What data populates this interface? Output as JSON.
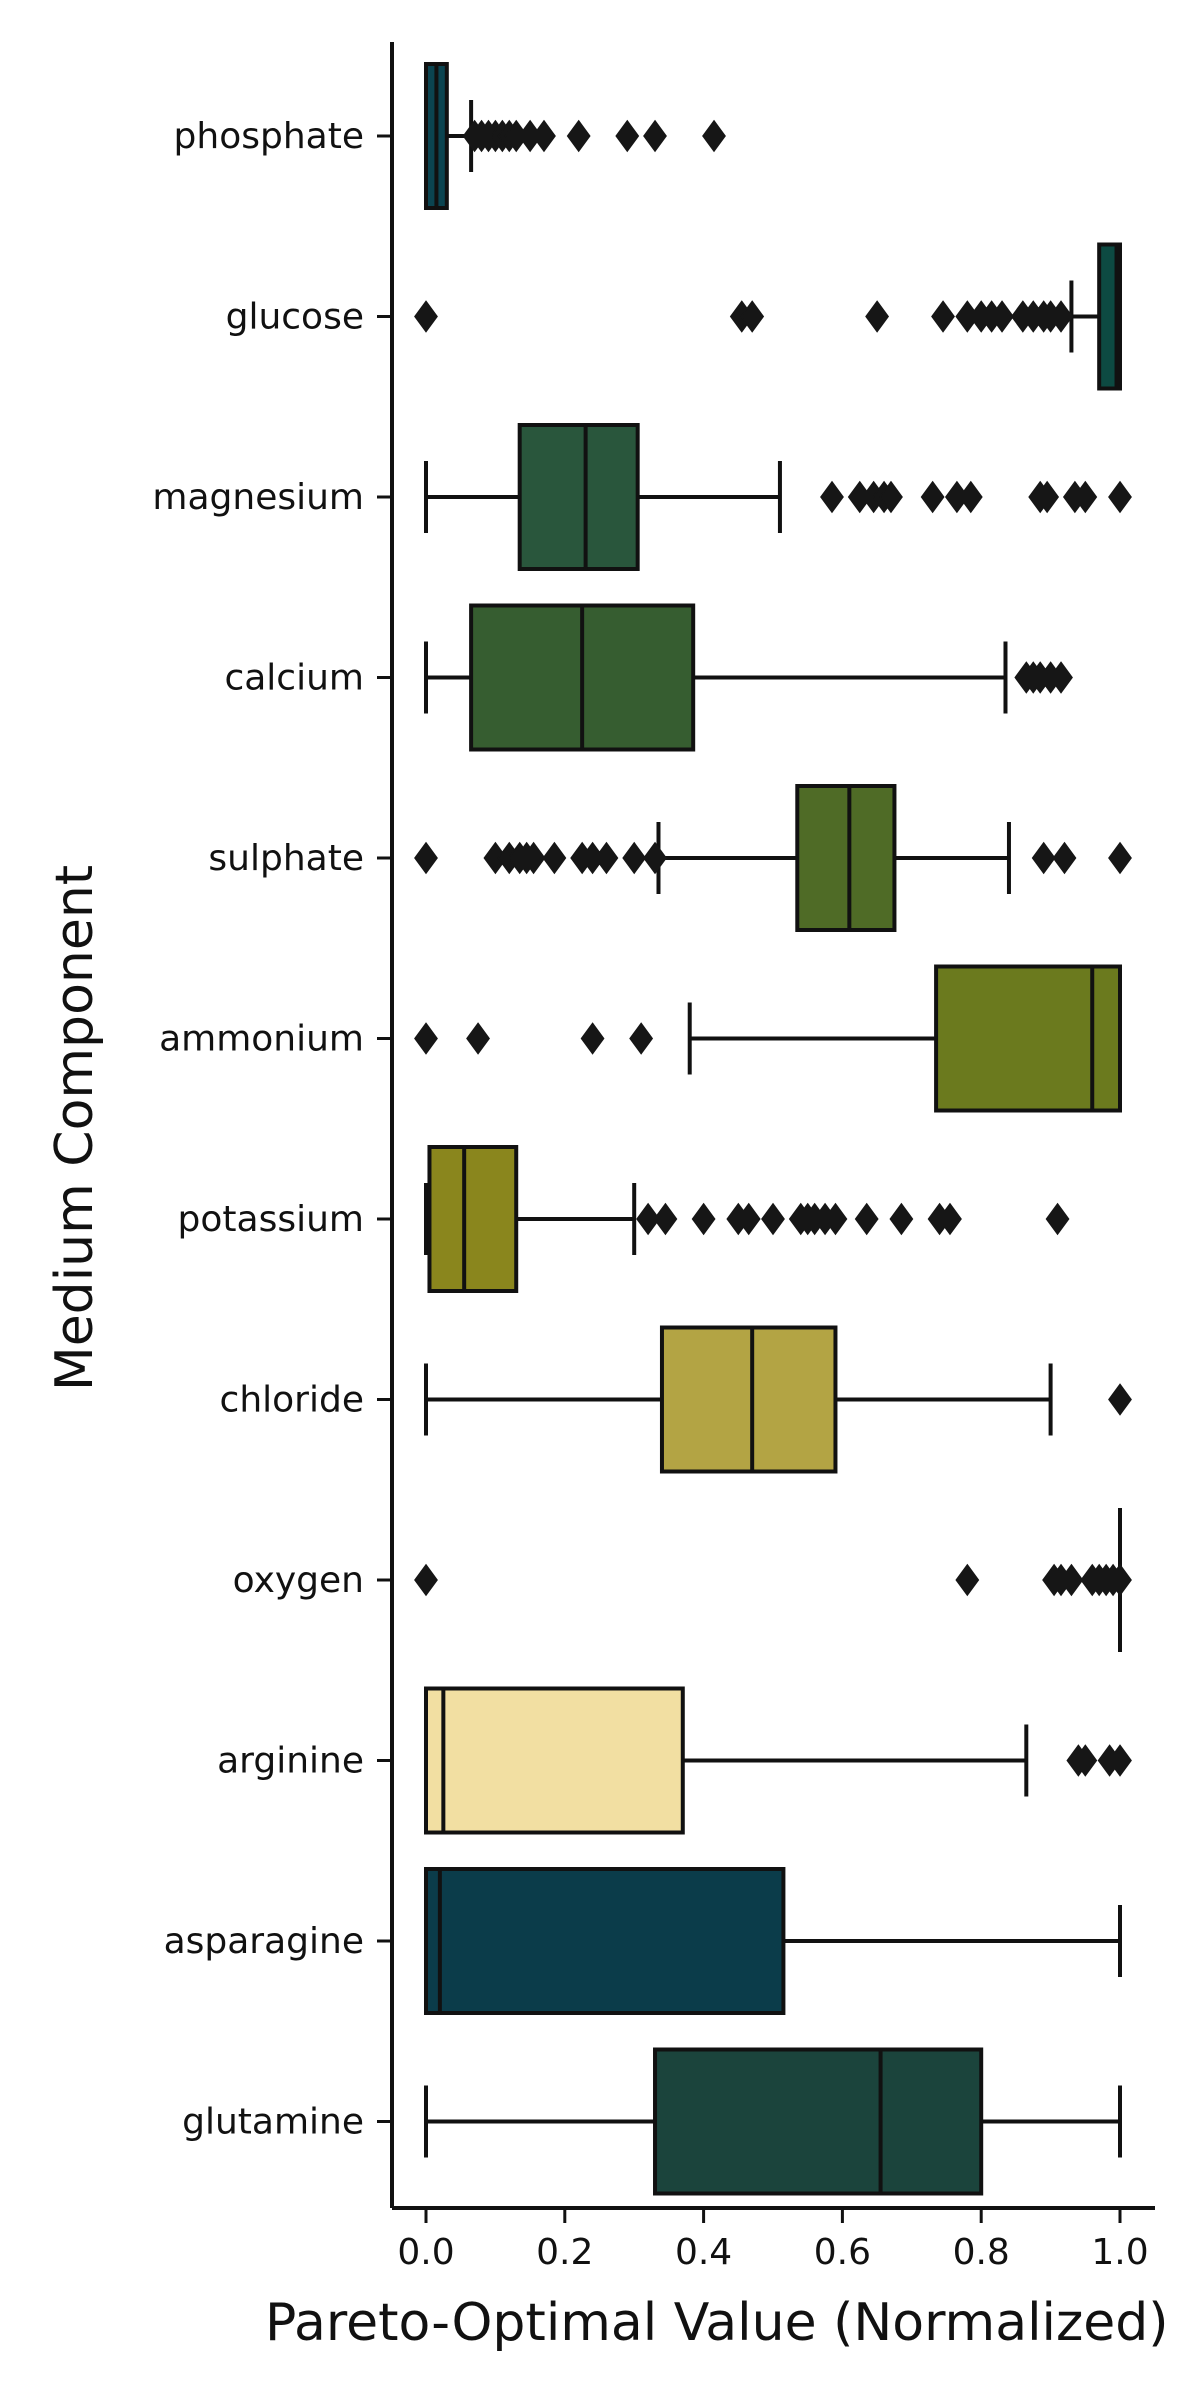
{
  "chart_data": {
    "type": "boxplot",
    "orientation": "horizontal",
    "xlabel": "Pareto-Optimal Value (Normalized)",
    "ylabel": "Medium Component",
    "xlim": [
      -0.05,
      1.05
    ],
    "x_ticks": [
      0.0,
      0.2,
      0.4,
      0.6,
      0.8,
      1.0
    ],
    "x_tick_labels": [
      "0.0",
      "0.2",
      "0.4",
      "0.6",
      "0.8",
      "1.0"
    ],
    "grid": false,
    "categories": [
      "phosphate",
      "glucose",
      "magnesium",
      "calcium",
      "sulphate",
      "ammonium",
      "potassium",
      "chloride",
      "oxygen",
      "arginine",
      "asparagine",
      "glutamine"
    ],
    "series": [
      {
        "category": "phosphate",
        "color": "#0b4450",
        "whisker_low": 0.0,
        "q1": 0.0,
        "median": 0.015,
        "q3": 0.03,
        "whisker_high": 0.065,
        "outliers": [
          0.07,
          0.08,
          0.09,
          0.1,
          0.11,
          0.12,
          0.13,
          0.15,
          0.17,
          0.22,
          0.29,
          0.33,
          0.415
        ]
      },
      {
        "category": "glucose",
        "color": "#0d4a42",
        "whisker_low": 0.93,
        "q1": 0.97,
        "median": 0.995,
        "q3": 1.0,
        "whisker_high": 1.0,
        "outliers": [
          0.0,
          0.455,
          0.47,
          0.65,
          0.745,
          0.78,
          0.8,
          0.815,
          0.83,
          0.86,
          0.875,
          0.89,
          0.9,
          0.915
        ]
      },
      {
        "category": "magnesium",
        "color": "#29563c",
        "whisker_low": 0.0,
        "q1": 0.135,
        "median": 0.23,
        "q3": 0.305,
        "whisker_high": 0.51,
        "outliers": [
          0.585,
          0.625,
          0.645,
          0.66,
          0.67,
          0.73,
          0.765,
          0.785,
          0.885,
          0.895,
          0.935,
          0.95,
          1.0
        ]
      },
      {
        "category": "calcium",
        "color": "#365d30",
        "whisker_low": 0.0,
        "q1": 0.065,
        "median": 0.225,
        "q3": 0.385,
        "whisker_high": 0.835,
        "outliers": [
          0.865,
          0.875,
          0.885,
          0.9,
          0.915
        ]
      },
      {
        "category": "sulphate",
        "color": "#4f6b26",
        "whisker_low": 0.335,
        "q1": 0.535,
        "median": 0.61,
        "q3": 0.675,
        "whisker_high": 0.84,
        "outliers": [
          0.0,
          0.1,
          0.12,
          0.135,
          0.145,
          0.155,
          0.185,
          0.225,
          0.24,
          0.26,
          0.3,
          0.33,
          0.89,
          0.92,
          1.0
        ]
      },
      {
        "category": "ammonium",
        "color": "#6b7a1e",
        "whisker_low": 0.38,
        "q1": 0.735,
        "median": 0.96,
        "q3": 1.0,
        "whisker_high": 1.0,
        "outliers": [
          0.0,
          0.075,
          0.24,
          0.31
        ]
      },
      {
        "category": "potassium",
        "color": "#8a861d",
        "whisker_low": 0.0,
        "q1": 0.005,
        "median": 0.055,
        "q3": 0.13,
        "whisker_high": 0.3,
        "outliers": [
          0.32,
          0.345,
          0.4,
          0.45,
          0.465,
          0.5,
          0.54,
          0.55,
          0.56,
          0.575,
          0.59,
          0.635,
          0.685,
          0.74,
          0.755,
          0.91
        ]
      },
      {
        "category": "chloride",
        "color": "#b3a444",
        "whisker_low": 0.0,
        "q1": 0.34,
        "median": 0.47,
        "q3": 0.59,
        "whisker_high": 0.9,
        "outliers": [
          1.0
        ]
      },
      {
        "category": "oxygen",
        "color": "#c9b85a",
        "whisker_low": 1.0,
        "q1": 1.0,
        "median": 1.0,
        "q3": 1.0,
        "whisker_high": 1.0,
        "outliers": [
          0.0,
          0.78,
          0.905,
          0.915,
          0.93,
          0.96,
          0.97,
          0.98,
          0.99,
          1.0
        ]
      },
      {
        "category": "arginine",
        "color": "#f2dfa2",
        "whisker_low": 0.0,
        "q1": 0.0,
        "median": 0.025,
        "q3": 0.37,
        "whisker_high": 0.865,
        "outliers": [
          0.94,
          0.95,
          0.985,
          1.0
        ]
      },
      {
        "category": "asparagine",
        "color": "#0b3c4a",
        "whisker_low": 0.0,
        "q1": 0.0,
        "median": 0.02,
        "q3": 0.515,
        "whisker_high": 1.0,
        "outliers": []
      },
      {
        "category": "glutamine",
        "color": "#1b443c",
        "whisker_low": 0.0,
        "q1": 0.33,
        "median": 0.655,
        "q3": 0.8,
        "whisker_high": 1.0,
        "outliers": []
      }
    ]
  }
}
